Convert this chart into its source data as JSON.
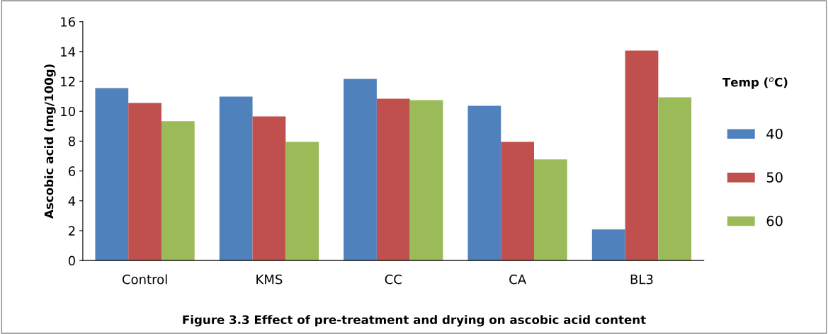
{
  "chart_data": {
    "type": "bar",
    "title": "Figure 3.3 Effect of pre-treatment and drying on ascobic acid content",
    "ylabel": "Ascobic acid (mg/100g)",
    "legend_title": "Temp ($^{o}$C)",
    "categories": [
      "Control",
      "KMS",
      "CC",
      "CA",
      "BL3"
    ],
    "series": [
      {
        "name": "40",
        "color": "#4f81bd",
        "values": [
          11.55,
          10.98,
          12.17,
          10.37,
          2.08
        ]
      },
      {
        "name": "50",
        "color": "#c0504d",
        "values": [
          10.56,
          9.66,
          10.84,
          7.95,
          14.06
        ]
      },
      {
        "name": "60",
        "color": "#9bbb59",
        "values": [
          9.33,
          7.95,
          10.75,
          6.77,
          10.93
        ]
      }
    ],
    "ylim": [
      0,
      16
    ],
    "yticks": [
      0,
      2,
      4,
      6,
      8,
      10,
      12,
      14,
      16
    ],
    "grid": false,
    "legend": "right"
  }
}
